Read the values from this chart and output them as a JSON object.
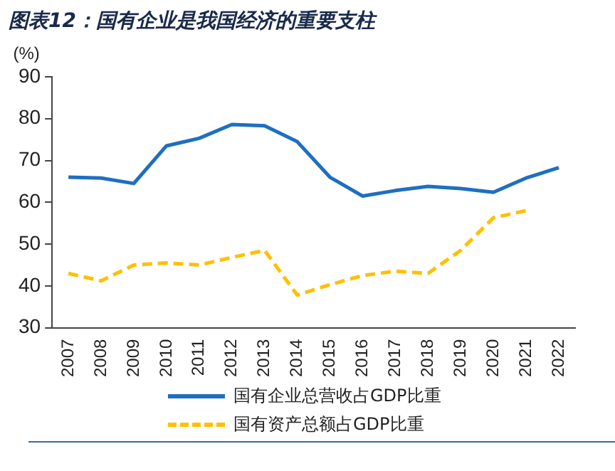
{
  "chart_data": {
    "type": "line",
    "title": "图表12：国有企业是我国经济的重要支柱",
    "ylabel": "(%)",
    "categories": [
      "2007",
      "2008",
      "2009",
      "2010",
      "2011",
      "2012",
      "2013",
      "2014",
      "2015",
      "2016",
      "2017",
      "2018",
      "2019",
      "2020",
      "2021",
      "2022"
    ],
    "series": [
      {
        "name": "国有企业总营收占GDP比重",
        "color": "#1f6fc0",
        "line_style": "solid",
        "values": [
          66,
          65.8,
          64.5,
          73.5,
          75.3,
          78.6,
          78.3,
          74.5,
          66,
          61.5,
          62.8,
          63.8,
          63.3,
          62.4,
          65.8,
          68.3
        ]
      },
      {
        "name": "国有资产总额占GDP比重",
        "color": "#ffc000",
        "line_style": "dashed",
        "values": [
          43,
          41.2,
          45,
          45.5,
          45,
          46.8,
          48.5,
          37.8,
          40.3,
          42.5,
          43.5,
          43,
          48.5,
          56.3,
          58,
          null
        ]
      }
    ],
    "ylim": [
      30,
      90
    ],
    "yticks": [
      30,
      40,
      50,
      60,
      70,
      80,
      90
    ],
    "grid": false,
    "legend": "bottom",
    "marker": "none"
  }
}
